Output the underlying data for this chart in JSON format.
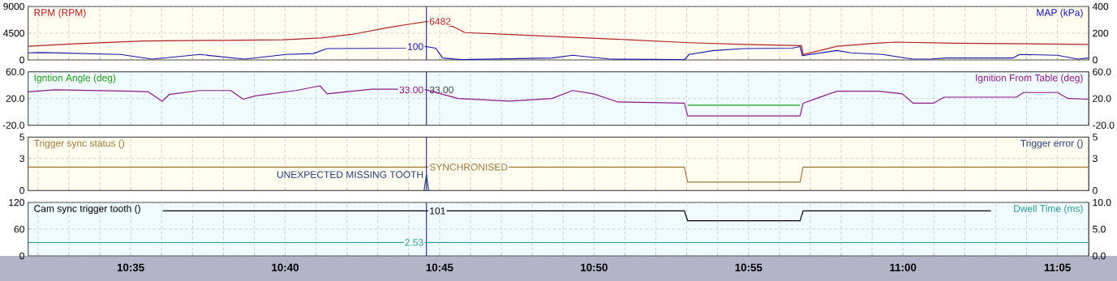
{
  "chart_data": [
    {
      "type": "line",
      "xlim": [
        10.528,
        11.1003
      ],
      "ylim": [
        0,
        9000
      ],
      "yticks": [
        0,
        4500,
        9000
      ],
      "y2lim": [
        0,
        400
      ],
      "y2ticks": [
        0,
        200,
        400
      ],
      "grid": true,
      "tick_labels": "y",
      "xticks": [
        {
          "value": 10.53333,
          "label": null
        },
        {
          "value": 10.55,
          "label": null
        },
        {
          "value": 10.56667,
          "label": null
        },
        {
          "value": 10.58333,
          "label": null
        },
        {
          "value": 10.6,
          "label": null
        },
        {
          "value": 10.61667,
          "label": null
        },
        {
          "value": 10.63333,
          "label": null
        },
        {
          "value": 10.65,
          "label": null
        },
        {
          "value": 10.66667,
          "label": null
        },
        {
          "value": 10.68333,
          "label": null
        },
        {
          "value": 10.7,
          "label": null
        },
        {
          "value": 10.71667,
          "label": null
        },
        {
          "value": 10.73333,
          "label": null
        },
        {
          "value": 10.75,
          "label": null
        },
        {
          "value": 10.76667,
          "label": null
        },
        {
          "value": 10.78333,
          "label": null
        },
        {
          "value": 10.8,
          "label": null
        },
        {
          "value": 10.81667,
          "label": null
        },
        {
          "value": 10.83333,
          "label": null
        },
        {
          "value": 10.85,
          "label": null
        },
        {
          "value": 10.86667,
          "label": null
        },
        {
          "value": 10.88333,
          "label": null
        },
        {
          "value": 10.9,
          "label": null
        },
        {
          "value": 10.91667,
          "label": null
        },
        {
          "value": 10.93333,
          "label": null
        },
        {
          "value": 10.95,
          "label": null
        },
        {
          "value": 10.96667,
          "label": null
        },
        {
          "value": 10.98333,
          "label": null
        },
        {
          "value": 11.0,
          "label": null
        },
        {
          "value": 11.01667,
          "label": null
        },
        {
          "value": 11.03333,
          "label": null
        },
        {
          "value": 11.05,
          "label": null
        },
        {
          "value": 11.06667,
          "label": null
        },
        {
          "value": 11.08333,
          "label": null
        },
        {
          "value": 11.1,
          "label": null
        }
      ],
      "ref_lines": [
        {
          "axis": "x",
          "value": 10.7429,
          "color": "#1c1c8c"
        }
      ],
      "series": [
        {
          "name": "RPM (RPM)",
          "color": "#b22222",
          "x": [
            10.528,
            10.5529,
            10.5903,
            10.6319,
            10.6652,
            10.6859,
            10.7026,
            10.7233,
            10.7429,
            10.7574,
            10.7637,
            10.7857,
            10.8148,
            10.8522,
            10.8846,
            10.9145,
            10.9453,
            10.9461,
            10.9644,
            10.9852,
            10.996,
            11.0268,
            11.0683,
            11.0999
          ],
          "values": [
            2300,
            2700,
            3200,
            3300,
            3400,
            3700,
            4300,
            5500,
            6482,
            5600,
            4600,
            4300,
            3900,
            3400,
            2900,
            2600,
            2400,
            900,
            2300,
            2800,
            3000,
            2800,
            2700,
            2600
          ],
          "value_labels": [
            null,
            null,
            null,
            null,
            null,
            null,
            null,
            null,
            "6482",
            null,
            null,
            null,
            null,
            null,
            null,
            null,
            null,
            null,
            null,
            null,
            null,
            null,
            null,
            null
          ]
        },
        {
          "name": "MAP (kPa)",
          "color": "#1a1aa8",
          "axis": "y2",
          "x": [
            10.528,
            10.5355,
            10.5779,
            10.5949,
            10.6207,
            10.6448,
            10.6672,
            10.6818,
            10.6893,
            10.7321,
            10.7429,
            10.7479,
            10.7516,
            10.7616,
            10.8106,
            10.8218,
            10.8422,
            10.8821,
            10.8846,
            10.8979,
            10.9145,
            10.9403,
            10.9445,
            10.9457,
            10.9644,
            10.9719,
            10.9889,
            11.0055,
            11.0147,
            11.0238,
            11.0592,
            11.0629,
            11.0833,
            11.0945,
            11.0999
          ],
          "values": [
            53,
            55,
            41,
            6,
            41,
            6,
            41,
            48,
            85,
            88,
            100,
            88,
            14,
            2,
            14,
            35,
            6,
            2,
            41,
            71,
            85,
            88,
            100,
            32,
            71,
            53,
            41,
            6,
            6,
            14,
            14,
            41,
            35,
            6,
            14
          ],
          "value_labels": [
            null,
            null,
            null,
            null,
            null,
            null,
            null,
            null,
            null,
            null,
            "100",
            null,
            null,
            null,
            null,
            null,
            null,
            null,
            null,
            null,
            null,
            null,
            null,
            null,
            null,
            null,
            null,
            null,
            null,
            null,
            null,
            null,
            null,
            null,
            null
          ]
        }
      ]
    },
    {
      "type": "line",
      "xlim": [
        10.528,
        11.1003
      ],
      "ylim": [
        -20,
        60
      ],
      "yticks": [
        {
          "value": -20,
          "label": "-20.0"
        },
        {
          "value": 20,
          "label": "20.0"
        },
        {
          "value": 60,
          "label": "60.0"
        }
      ],
      "y2lim": [
        -20,
        60
      ],
      "y2ticks": [
        {
          "value": -20,
          "label": "-20.0"
        },
        {
          "value": 20,
          "label": "20.0"
        },
        {
          "value": 60,
          "label": "60.0"
        }
      ],
      "grid": true,
      "tick_labels": "y",
      "annotations": [
        {
          "text": "33.00",
          "x": 10.7429,
          "y": 33
        }
      ],
      "xticks": [
        {
          "value": 10.53333,
          "label": null
        },
        {
          "value": 10.55,
          "label": null
        },
        {
          "value": 10.56667,
          "label": null
        },
        {
          "value": 10.58333,
          "label": null
        },
        {
          "value": 10.6,
          "label": null
        },
        {
          "value": 10.61667,
          "label": null
        },
        {
          "value": 10.63333,
          "label": null
        },
        {
          "value": 10.65,
          "label": null
        },
        {
          "value": 10.66667,
          "label": null
        },
        {
          "value": 10.68333,
          "label": null
        },
        {
          "value": 10.7,
          "label": null
        },
        {
          "value": 10.71667,
          "label": null
        },
        {
          "value": 10.73333,
          "label": null
        },
        {
          "value": 10.75,
          "label": null
        },
        {
          "value": 10.76667,
          "label": null
        },
        {
          "value": 10.78333,
          "label": null
        },
        {
          "value": 10.8,
          "label": null
        },
        {
          "value": 10.81667,
          "label": null
        },
        {
          "value": 10.83333,
          "label": null
        },
        {
          "value": 10.85,
          "label": null
        },
        {
          "value": 10.86667,
          "label": null
        },
        {
          "value": 10.88333,
          "label": null
        },
        {
          "value": 10.9,
          "label": null
        },
        {
          "value": 10.91667,
          "label": null
        },
        {
          "value": 10.93333,
          "label": null
        },
        {
          "value": 10.95,
          "label": null
        },
        {
          "value": 10.96667,
          "label": null
        },
        {
          "value": 10.98333,
          "label": null
        },
        {
          "value": 11.0,
          "label": null
        },
        {
          "value": 11.01667,
          "label": null
        },
        {
          "value": 11.03333,
          "label": null
        },
        {
          "value": 11.05,
          "label": null
        },
        {
          "value": 11.06667,
          "label": null
        },
        {
          "value": 11.08333,
          "label": null
        },
        {
          "value": 11.1,
          "label": null
        }
      ],
      "ref_lines": [
        {
          "axis": "x",
          "value": 10.7429,
          "color": "#1c1c8c"
        }
      ],
      "series": [
        {
          "name": "Igntion Angle (deg)",
          "color": "#1e9a1e",
          "x": [
            10.8838,
            10.9445
          ],
          "values": [
            10,
            10
          ]
        },
        {
          "name": "Ignition From Table (deg)",
          "color": "#8b1a8b",
          "axis": "y2",
          "x": [
            10.528,
            10.5425,
            10.5841,
            10.5928,
            10.5945,
            10.6003,
            10.6041,
            10.6207,
            10.6373,
            10.644,
            10.6506,
            10.6726,
            10.6855,
            10.6893,
            10.7134,
            10.7283,
            10.7429,
            10.7599,
            10.7878,
            10.8106,
            10.8218,
            10.8331,
            10.8459,
            10.8821,
            10.8838,
            10.9445,
            10.9461,
            10.9644,
            10.9869,
            10.9997,
            11.0055,
            11.0164,
            11.0222,
            11.0612,
            11.065,
            11.0833,
            11.0891,
            11.0999
          ],
          "values": [
            30,
            33,
            31,
            30,
            27,
            16,
            26,
            32,
            32,
            19,
            24,
            32,
            39,
            27,
            34,
            34,
            33,
            20,
            16,
            20,
            32,
            27,
            15,
            13,
            -6,
            -6,
            13,
            31,
            31,
            27,
            13,
            13,
            22,
            22,
            29,
            29,
            20,
            19
          ],
          "value_labels": [
            null,
            null,
            null,
            null,
            null,
            null,
            null,
            null,
            null,
            null,
            null,
            null,
            null,
            null,
            null,
            null,
            "33.00",
            null,
            null,
            null,
            null,
            null,
            null,
            null,
            null,
            null,
            null,
            null,
            null,
            null,
            null,
            null,
            null,
            null,
            null,
            null,
            null,
            null
          ]
        }
      ]
    },
    {
      "type": "line",
      "xlim": [
        10.528,
        11.1003
      ],
      "ylim": [
        0,
        5
      ],
      "yticks": [
        0,
        3,
        5
      ],
      "y2lim": [
        0,
        5
      ],
      "y2ticks": [
        0,
        3,
        5
      ],
      "grid": true,
      "tick_labels": "y",
      "xticks": [
        {
          "value": 10.53333,
          "label": null
        },
        {
          "value": 10.55,
          "label": null
        },
        {
          "value": 10.56667,
          "label": null
        },
        {
          "value": 10.58333,
          "label": null
        },
        {
          "value": 10.6,
          "label": null
        },
        {
          "value": 10.61667,
          "label": null
        },
        {
          "value": 10.63333,
          "label": null
        },
        {
          "value": 10.65,
          "label": null
        },
        {
          "value": 10.66667,
          "label": null
        },
        {
          "value": 10.68333,
          "label": null
        },
        {
          "value": 10.7,
          "label": null
        },
        {
          "value": 10.71667,
          "label": null
        },
        {
          "value": 10.73333,
          "label": null
        },
        {
          "value": 10.75,
          "label": null
        },
        {
          "value": 10.76667,
          "label": null
        },
        {
          "value": 10.78333,
          "label": null
        },
        {
          "value": 10.8,
          "label": null
        },
        {
          "value": 10.81667,
          "label": null
        },
        {
          "value": 10.83333,
          "label": null
        },
        {
          "value": 10.85,
          "label": null
        },
        {
          "value": 10.86667,
          "label": null
        },
        {
          "value": 10.88333,
          "label": null
        },
        {
          "value": 10.9,
          "label": null
        },
        {
          "value": 10.91667,
          "label": null
        },
        {
          "value": 10.93333,
          "label": null
        },
        {
          "value": 10.95,
          "label": null
        },
        {
          "value": 10.96667,
          "label": null
        },
        {
          "value": 10.98333,
          "label": null
        },
        {
          "value": 11.0,
          "label": null
        },
        {
          "value": 11.01667,
          "label": null
        },
        {
          "value": 11.03333,
          "label": null
        },
        {
          "value": 11.05,
          "label": null
        },
        {
          "value": 11.06667,
          "label": null
        },
        {
          "value": 11.08333,
          "label": null
        },
        {
          "value": 11.1,
          "label": null
        }
      ],
      "ref_lines": [
        {
          "axis": "x",
          "value": 10.7429,
          "color": "#1c1c8c"
        }
      ],
      "series": [
        {
          "name": "Trigger sync status ()",
          "color": "#a0783c",
          "x": [
            10.528,
            10.7429,
            10.8821,
            10.8838,
            10.9445,
            10.9461,
            11.0999
          ],
          "values": [
            2.2,
            2.2,
            2.2,
            0.8,
            0.8,
            2.2,
            2.2
          ],
          "value_labels": [
            null,
            "SYNCHRONISED",
            null,
            null,
            null,
            null,
            null
          ]
        },
        {
          "name": "Trigger error ()",
          "color": "#283c78",
          "axis": "y2",
          "x": [
            10.7416,
            10.7429,
            10.7441
          ],
          "values": [
            0,
            1.5,
            0
          ],
          "value_labels": [
            null,
            "UNEXPECTED MISSING TOOTH",
            null
          ]
        }
      ]
    },
    {
      "type": "line",
      "xlim": [
        10.528,
        11.1003
      ],
      "ylim": [
        0,
        120
      ],
      "yticks": [
        0,
        60,
        120
      ],
      "y2lim": [
        0,
        10
      ],
      "y2ticks": [
        {
          "value": 0,
          "label": "0.0"
        },
        {
          "value": 5,
          "label": "5.0"
        },
        {
          "value": 10,
          "label": "10.0"
        }
      ],
      "grid": true,
      "xticks": [
        {
          "value": 10.53333,
          "label": null
        },
        {
          "value": 10.55,
          "label": null
        },
        {
          "value": 10.56667,
          "label": null
        },
        {
          "value": 10.58333,
          "label": "10:35"
        },
        {
          "value": 10.6,
          "label": null
        },
        {
          "value": 10.61667,
          "label": null
        },
        {
          "value": 10.63333,
          "label": null
        },
        {
          "value": 10.65,
          "label": null
        },
        {
          "value": 10.66667,
          "label": "10:40"
        },
        {
          "value": 10.68333,
          "label": null
        },
        {
          "value": 10.7,
          "label": null
        },
        {
          "value": 10.71667,
          "label": null
        },
        {
          "value": 10.73333,
          "label": null
        },
        {
          "value": 10.75,
          "label": "10:45"
        },
        {
          "value": 10.76667,
          "label": null
        },
        {
          "value": 10.78333,
          "label": null
        },
        {
          "value": 10.8,
          "label": null
        },
        {
          "value": 10.81667,
          "label": null
        },
        {
          "value": 10.83333,
          "label": "10:50"
        },
        {
          "value": 10.85,
          "label": null
        },
        {
          "value": 10.86667,
          "label": null
        },
        {
          "value": 10.88333,
          "label": null
        },
        {
          "value": 10.9,
          "label": null
        },
        {
          "value": 10.91667,
          "label": "10:55"
        },
        {
          "value": 10.93333,
          "label": null
        },
        {
          "value": 10.95,
          "label": null
        },
        {
          "value": 10.96667,
          "label": null
        },
        {
          "value": 10.98333,
          "label": null
        },
        {
          "value": 11.0,
          "label": "11:00"
        },
        {
          "value": 11.01667,
          "label": null
        },
        {
          "value": 11.03333,
          "label": null
        },
        {
          "value": 11.05,
          "label": null
        },
        {
          "value": 11.06667,
          "label": null
        },
        {
          "value": 11.08333,
          "label": "11:05"
        },
        {
          "value": 11.1,
          "label": null
        }
      ],
      "ref_lines": [
        {
          "axis": "x",
          "value": 10.7429,
          "color": "#1c1c8c"
        }
      ],
      "series": [
        {
          "name": "Cam sync trigger tooth ()",
          "color": "#000000",
          "x": [
            10.6007,
            10.7429,
            10.8821,
            10.8838,
            10.9445,
            10.9461,
            11.0475
          ],
          "values": [
            101,
            101,
            101,
            79,
            79,
            101,
            101
          ],
          "value_labels": [
            null,
            "101",
            null,
            null,
            null,
            null,
            null
          ]
        },
        {
          "name": "Dwell Time (ms)",
          "color": "#2a9a9a",
          "axis": "y2",
          "x": [
            10.528,
            10.5696,
            10.6111,
            10.6527,
            10.6942,
            10.7429,
            10.7774,
            10.8189,
            10.8605,
            10.9021,
            10.9436,
            10.9852,
            11.0268,
            11.0683,
            11.0999
          ],
          "values": [
            2.5,
            2.5,
            2.5,
            2.5,
            2.5,
            2.53,
            2.5,
            2.5,
            2.5,
            2.5,
            2.5,
            2.5,
            2.5,
            2.5,
            2.5
          ],
          "value_labels": [
            null,
            null,
            null,
            null,
            null,
            "2.53",
            null,
            null,
            null,
            null,
            null,
            null,
            null,
            null,
            null
          ]
        }
      ]
    }
  ]
}
